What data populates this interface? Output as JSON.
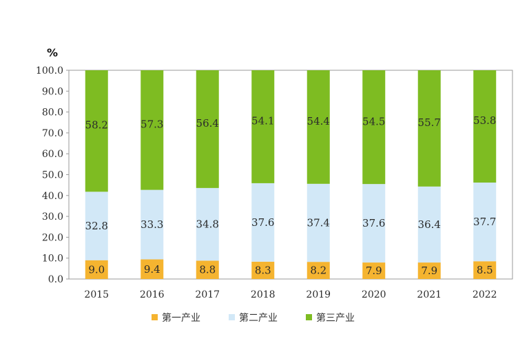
{
  "chart_data": {
    "type": "bar",
    "stacked": true,
    "unit": "%",
    "categories": [
      "2015",
      "2016",
      "2017",
      "2018",
      "2019",
      "2020",
      "2021",
      "2022"
    ],
    "series": [
      {
        "name": "第一产业",
        "color": "#f5b430",
        "values": [
          9.0,
          9.4,
          8.8,
          8.3,
          8.2,
          7.9,
          7.9,
          8.5
        ]
      },
      {
        "name": "第二产业",
        "color": "#d2e8f7",
        "values": [
          32.8,
          33.3,
          34.8,
          37.6,
          37.4,
          37.6,
          36.4,
          37.7
        ]
      },
      {
        "name": "第三产业",
        "color": "#7ebc22",
        "values": [
          58.2,
          57.3,
          56.4,
          54.1,
          54.4,
          54.5,
          55.7,
          53.8
        ]
      }
    ],
    "ylim": [
      0,
      100
    ],
    "yticks": [
      "0.0",
      "10.0",
      "20.0",
      "30.0",
      "40.0",
      "50.0",
      "60.0",
      "70.0",
      "80.0",
      "90.0",
      "100.0"
    ],
    "legend_position": "bottom",
    "grid": false
  }
}
